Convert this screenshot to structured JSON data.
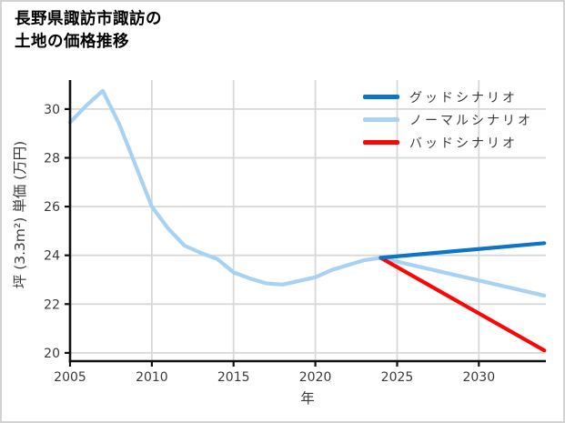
{
  "title": {
    "line1": "長野県諏訪市諏訪の",
    "line2": "土地の価格推移"
  },
  "chart_data": {
    "type": "line",
    "title": "長野県諏訪市諏訪の土地の価格推移",
    "xlabel": "年",
    "ylabel": "坪 (3.3m²) 単価 (万円)",
    "x_ticks": [
      2005,
      2010,
      2015,
      2020,
      2025,
      2030
    ],
    "y_ticks": [
      20,
      22,
      24,
      26,
      28,
      30
    ],
    "xlim": [
      2005,
      2034.1
    ],
    "ylim": [
      19.66,
      31.19
    ],
    "grid": true,
    "legend_position": "upper right",
    "colors": {
      "grid": "#d8d8d8",
      "axis": "#111111",
      "tick_label": "#3a3a3a",
      "background": "#ffffff"
    },
    "series": [
      {
        "name": "グッドシナリオ",
        "color": "#0d74c8",
        "x": [
          2024,
          2034
        ],
        "values": [
          23.9,
          24.5
        ]
      },
      {
        "name": "ノーマルシナリオ",
        "color": "#a8d2f4",
        "x": [
          2005,
          2006,
          2007,
          2008,
          2009,
          2010,
          2011,
          2012,
          2013,
          2014,
          2015,
          2016,
          2017,
          2018,
          2019,
          2020,
          2021,
          2022,
          2023,
          2024,
          2034
        ],
        "values": [
          29.45,
          30.15,
          30.75,
          29.4,
          27.7,
          26.0,
          25.1,
          24.4,
          24.1,
          23.85,
          23.3,
          23.05,
          22.85,
          22.8,
          22.95,
          23.1,
          23.4,
          23.6,
          23.8,
          23.9,
          22.35
        ]
      },
      {
        "name": "バッドシナリオ",
        "color": "#f90707",
        "x": [
          2024,
          2034
        ],
        "values": [
          23.9,
          20.1
        ]
      }
    ]
  }
}
